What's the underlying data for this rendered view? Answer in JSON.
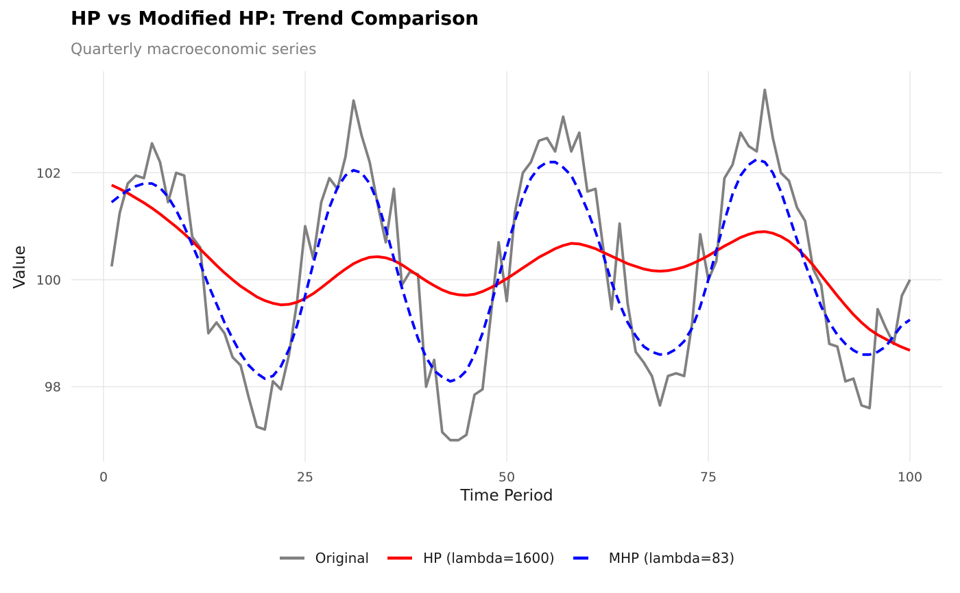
{
  "header": {
    "title": "HP vs Modified HP: Trend Comparison",
    "subtitle": "Quarterly macroeconomic series"
  },
  "chart_data": {
    "type": "line",
    "title": "HP vs Modified HP: Trend Comparison",
    "subtitle": "Quarterly macroeconomic series",
    "xlabel": "Time Period",
    "ylabel": "Value",
    "x_ticks": [
      0,
      25,
      50,
      75,
      100
    ],
    "y_ticks": [
      98,
      100,
      102
    ],
    "xlim": [
      -4,
      104
    ],
    "ylim": [
      96.6,
      103.9
    ],
    "grid": true,
    "grid_color": "#e5e5e5",
    "background_color": "#ffffff",
    "legend_position": "bottom",
    "x": [
      1,
      2,
      3,
      4,
      5,
      6,
      7,
      8,
      9,
      10,
      11,
      12,
      13,
      14,
      15,
      16,
      17,
      18,
      19,
      20,
      21,
      22,
      23,
      24,
      25,
      26,
      27,
      28,
      29,
      30,
      31,
      32,
      33,
      34,
      35,
      36,
      37,
      38,
      39,
      40,
      41,
      42,
      43,
      44,
      45,
      46,
      47,
      48,
      49,
      50,
      51,
      52,
      53,
      54,
      55,
      56,
      57,
      58,
      59,
      60,
      61,
      62,
      63,
      64,
      65,
      66,
      67,
      68,
      69,
      70,
      71,
      72,
      73,
      74,
      75,
      76,
      77,
      78,
      79,
      80,
      81,
      82,
      83,
      84,
      85,
      86,
      87,
      88,
      89,
      90,
      91,
      92,
      93,
      94,
      95,
      96,
      97,
      98,
      99,
      100
    ],
    "series": [
      {
        "name": "Original",
        "color": "#808080",
        "style": "solid",
        "width": 3.8,
        "values": [
          100.25,
          101.25,
          101.8,
          101.95,
          101.9,
          102.55,
          102.2,
          101.45,
          102.0,
          101.95,
          100.8,
          100.6,
          99.0,
          99.2,
          99.0,
          98.55,
          98.4,
          97.8,
          97.25,
          97.2,
          98.1,
          97.95,
          98.6,
          99.6,
          101.0,
          100.4,
          101.45,
          101.9,
          101.7,
          102.3,
          103.35,
          102.7,
          102.2,
          101.4,
          100.7,
          101.7,
          99.9,
          100.15,
          100.1,
          98.0,
          98.5,
          97.15,
          97.0,
          97.0,
          97.1,
          97.85,
          97.95,
          99.3,
          100.7,
          99.6,
          101.25,
          102.0,
          102.2,
          102.6,
          102.65,
          102.4,
          103.05,
          102.4,
          102.75,
          101.65,
          101.7,
          100.55,
          99.45,
          101.05,
          99.55,
          98.65,
          98.45,
          98.2,
          97.65,
          98.2,
          98.25,
          98.2,
          99.2,
          100.85,
          100.0,
          100.35,
          101.9,
          102.15,
          102.75,
          102.5,
          102.4,
          103.55,
          102.65,
          102.0,
          101.85,
          101.35,
          101.1,
          100.2,
          99.9,
          98.8,
          98.75,
          98.1,
          98.15,
          97.65,
          97.6,
          99.45,
          99.1,
          98.8,
          99.7,
          100.0
        ]
      },
      {
        "name": "HP (lambda=1600)",
        "color": "#ff0000",
        "style": "solid",
        "width": 4.0,
        "values": [
          101.77,
          101.7,
          101.62,
          101.53,
          101.44,
          101.34,
          101.23,
          101.11,
          100.99,
          100.86,
          100.72,
          100.57,
          100.42,
          100.27,
          100.13,
          100.0,
          99.88,
          99.78,
          99.68,
          99.61,
          99.56,
          99.53,
          99.54,
          99.58,
          99.65,
          99.74,
          99.85,
          99.97,
          100.09,
          100.2,
          100.3,
          100.37,
          100.42,
          100.43,
          100.41,
          100.36,
          100.28,
          100.18,
          100.08,
          99.98,
          99.89,
          99.81,
          99.75,
          99.72,
          99.71,
          99.73,
          99.78,
          99.85,
          99.93,
          100.02,
          100.12,
          100.22,
          100.32,
          100.42,
          100.5,
          100.58,
          100.64,
          100.68,
          100.67,
          100.63,
          100.58,
          100.51,
          100.44,
          100.37,
          100.3,
          100.25,
          100.2,
          100.17,
          100.16,
          100.17,
          100.2,
          100.24,
          100.3,
          100.37,
          100.45,
          100.54,
          100.63,
          100.71,
          100.79,
          100.85,
          100.89,
          100.9,
          100.87,
          100.81,
          100.72,
          100.59,
          100.44,
          100.27,
          100.08,
          99.89,
          99.7,
          99.52,
          99.35,
          99.2,
          99.07,
          98.97,
          98.89,
          98.81,
          98.74,
          98.68
        ]
      },
      {
        "name": "MHP (lambda=83)",
        "color": "#0000ff",
        "style": "dashed",
        "width": 3.8,
        "values": [
          101.45,
          101.57,
          101.67,
          101.75,
          101.8,
          101.8,
          101.72,
          101.55,
          101.3,
          101.0,
          100.65,
          100.3,
          99.9,
          99.55,
          99.2,
          98.9,
          98.62,
          98.4,
          98.25,
          98.15,
          98.2,
          98.38,
          98.7,
          99.15,
          99.7,
          100.3,
          100.85,
          101.35,
          101.72,
          101.95,
          102.05,
          102.0,
          101.8,
          101.45,
          100.95,
          100.4,
          99.85,
          99.35,
          98.9,
          98.55,
          98.3,
          98.18,
          98.1,
          98.15,
          98.3,
          98.6,
          99.0,
          99.5,
          100.05,
          100.6,
          101.1,
          101.55,
          101.9,
          102.1,
          102.2,
          102.2,
          102.1,
          101.95,
          101.65,
          101.3,
          100.9,
          100.45,
          99.95,
          99.55,
          99.2,
          98.95,
          98.75,
          98.65,
          98.6,
          98.62,
          98.7,
          98.85,
          99.1,
          99.5,
          100.0,
          100.55,
          101.1,
          101.6,
          101.95,
          102.15,
          102.25,
          102.2,
          102.0,
          101.65,
          101.2,
          100.75,
          100.3,
          99.9,
          99.5,
          99.2,
          98.97,
          98.8,
          98.68,
          98.6,
          98.6,
          98.65,
          98.75,
          98.95,
          99.15,
          99.25
        ]
      }
    ]
  }
}
